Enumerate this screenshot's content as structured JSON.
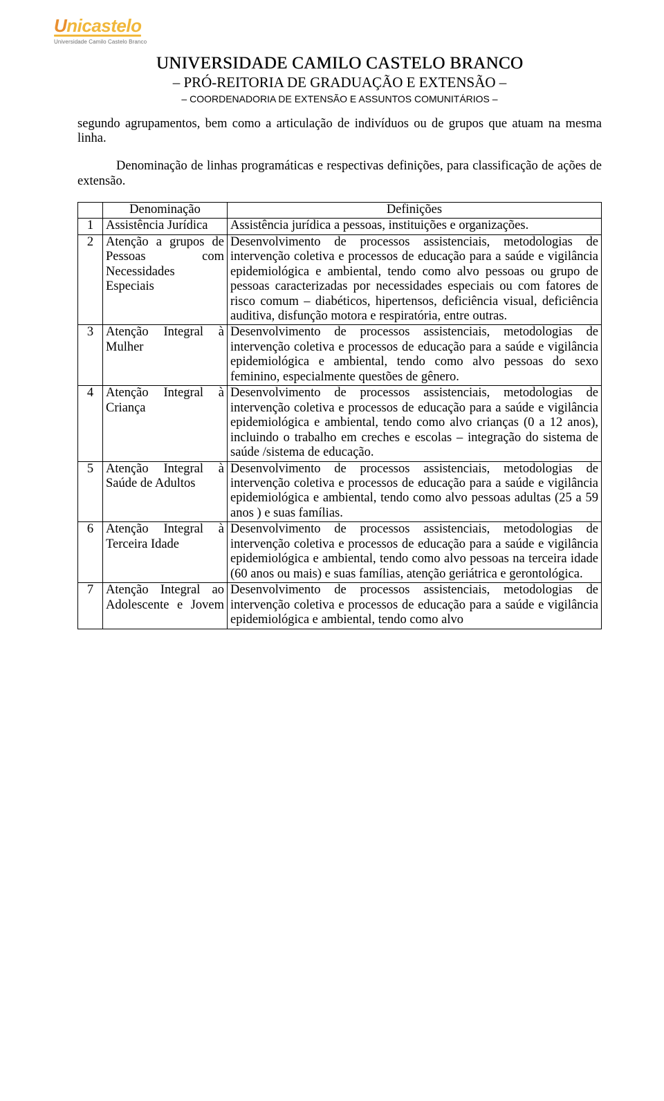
{
  "logo": {
    "word": "Unicastelo",
    "subtitle": "Universidade Camilo Castelo Branco"
  },
  "header": {
    "h1": "UNIVERSIDADE CAMILO CASTELO BRANCO",
    "h2": "– PRÓ-REITORIA DE GRADUAÇÃO E EXTENSÃO –",
    "h3": "– COORDENADORIA DE EXTENSÃO E ASSUNTOS COMUNITÁRIOS –"
  },
  "paragraphs": {
    "p1": "segundo agrupamentos, bem como a articulação de indivíduos ou de grupos que atuam na mesma linha.",
    "p2": "Denominação de linhas programáticas e respectivas definições, para classificação de ações de extensão."
  },
  "table": {
    "headers": {
      "h1": "",
      "h2": "Denominação",
      "h3": "Definições"
    },
    "rows": [
      {
        "n": "1",
        "denom": "Assistência Jurídica",
        "def": "Assistência jurídica a pessoas, instituições e organizações."
      },
      {
        "n": "2",
        "denom": "Atenção a grupos de Pessoas com Necessidades Especiais",
        "def": "Desenvolvimento de processos assistenciais, metodologias de intervenção coletiva e processos de educação para a saúde e vigilância epidemiológica e ambiental, tendo como alvo pessoas ou grupo de pessoas caracterizadas por necessidades especiais ou com fatores de risco comum – diabéticos, hipertensos, deficiência visual, deficiência auditiva, disfunção motora e respiratória, entre outras."
      },
      {
        "n": "3",
        "denom": "Atenção Integral à Mulher",
        "def": "Desenvolvimento de processos assistenciais, metodologias de intervenção coletiva e processos de educação para a saúde e vigilância epidemiológica e ambiental, tendo como alvo pessoas do sexo feminino, especialmente questões de gênero."
      },
      {
        "n": "4",
        "denom": "Atenção Integral à Criança",
        "def": "Desenvolvimento de processos assistenciais, metodologias de intervenção coletiva e processos de educação para a saúde e vigilância epidemiológica e ambiental, tendo como alvo crianças (0 a 12 anos), incluindo o trabalho em creches e escolas – integração do sistema de saúde /sistema de educação."
      },
      {
        "n": "5",
        "denom": "Atenção Integral à Saúde de Adultos",
        "def": "Desenvolvimento de processos assistenciais, metodologias de intervenção coletiva e processos de educação para a saúde e vigilância epidemiológica e ambiental, tendo como alvo pessoas adultas (25 a 59 anos ) e suas famílias."
      },
      {
        "n": "6",
        "denom": "Atenção Integral à Terceira Idade",
        "def": "Desenvolvimento de processos assistenciais, metodologias de intervenção coletiva e processos de educação para a saúde e vigilância epidemiológica e ambiental, tendo como alvo pessoas na terceira idade (60 anos ou mais) e suas famílias, atenção geriátrica e gerontológica."
      },
      {
        "n": "7",
        "denom": "Atenção Integral ao Adolescente e Jovem",
        "def": "Desenvolvimento de processos assistenciais, metodologias de intervenção coletiva e processos de educação para a saúde e vigilância epidemiológica e ambiental, tendo como alvo"
      }
    ]
  },
  "colors": {
    "logo_orange": "#e98f2e",
    "logo_yellow": "#f1b73a",
    "text": "#000000",
    "background": "#ffffff"
  },
  "typography": {
    "body_font": "Times New Roman",
    "body_size_pt": 14,
    "h1_size_pt": 19,
    "h2_size_pt": 16,
    "h3_size_pt": 11
  }
}
